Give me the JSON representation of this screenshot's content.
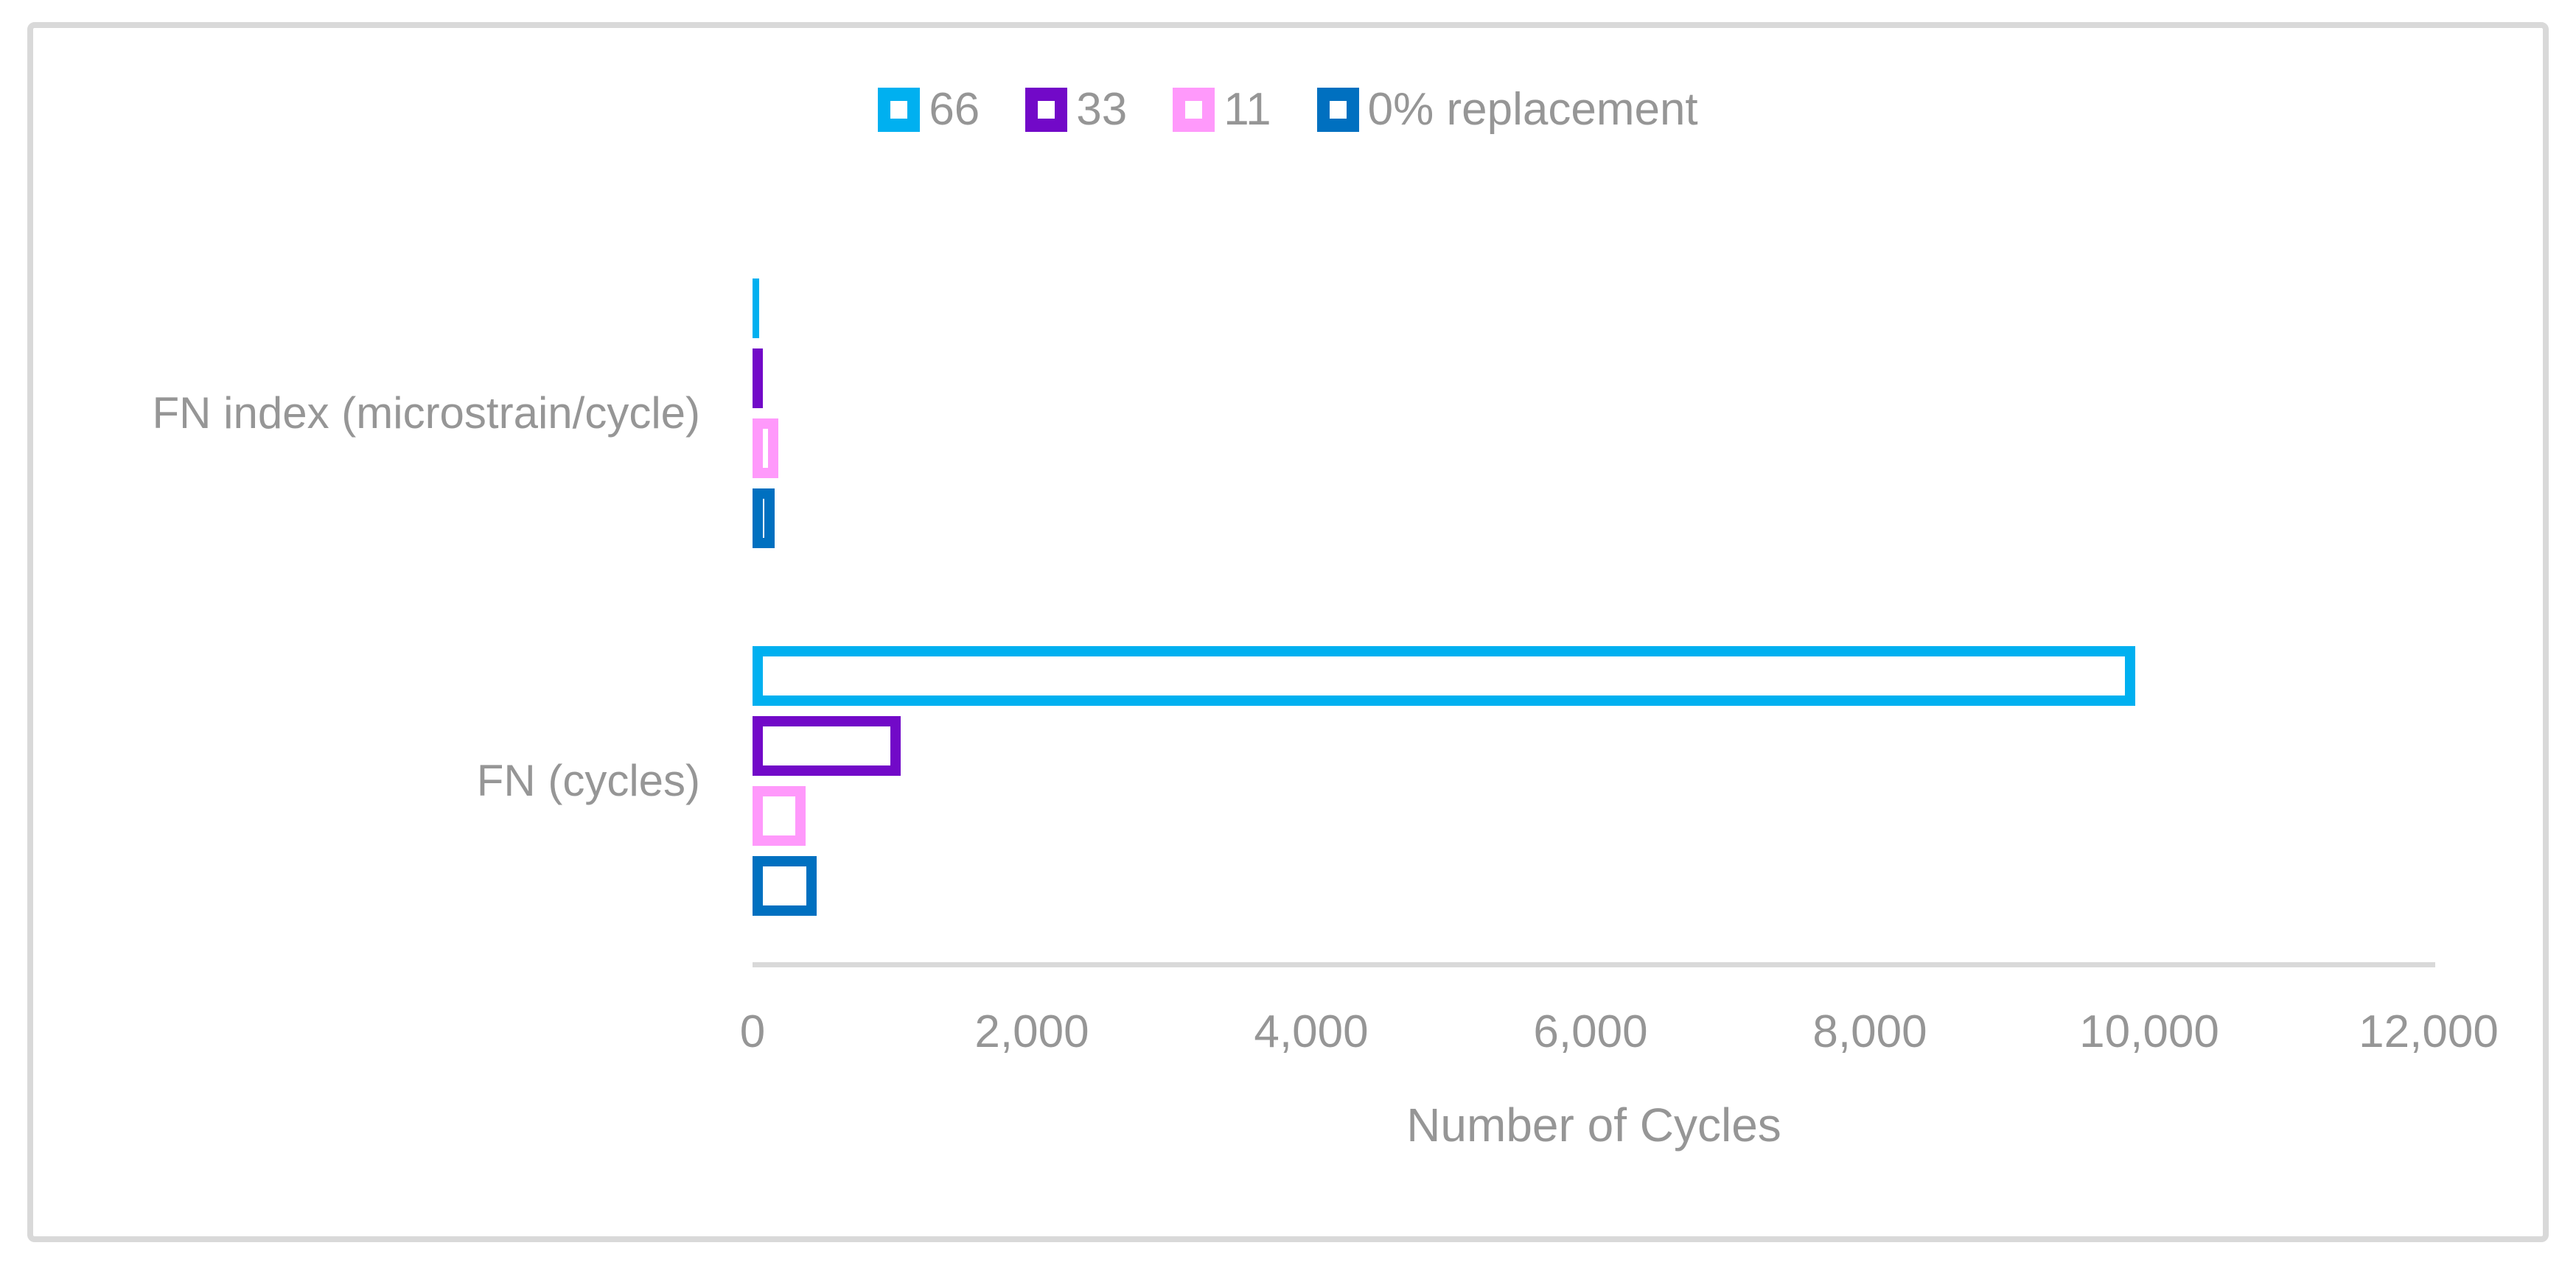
{
  "chart_data": {
    "type": "bar",
    "orientation": "horizontal",
    "title": "",
    "xlabel": "Number of Cycles",
    "ylabel": "",
    "categories": [
      "FN index (microstrain/cycle)",
      "FN (cycles)"
    ],
    "series": [
      {
        "name": "66",
        "color": "#00B0F0",
        "values": [
          50,
          9900
        ]
      },
      {
        "name": "33",
        "color": "#7209C8",
        "values": [
          75,
          1060
        ]
      },
      {
        "name": "11",
        "color": "#FF99FB",
        "values": [
          185,
          380
        ]
      },
      {
        "name": "0% replacement",
        "color": "#0070C0",
        "values": [
          160,
          460
        ]
      }
    ],
    "xlim": [
      0,
      12000
    ],
    "x_tick_values": [
      0,
      2000,
      4000,
      6000,
      8000,
      10000,
      12000
    ],
    "x_tick_labels": [
      "0",
      "2,000",
      "4,000",
      "6,000",
      "8,000",
      "10,000",
      "12,000"
    ],
    "legend_position": "top-center",
    "legend_order": [
      "66",
      "33",
      "11",
      "0% replacement"
    ],
    "bar_style": "hollow-outline",
    "grid": false
  },
  "style": {
    "text_color": "#969696",
    "axis_line_color": "#D9D9D9",
    "frame_border_color": "#D9D9D9",
    "background_color": "#FFFFFF"
  }
}
